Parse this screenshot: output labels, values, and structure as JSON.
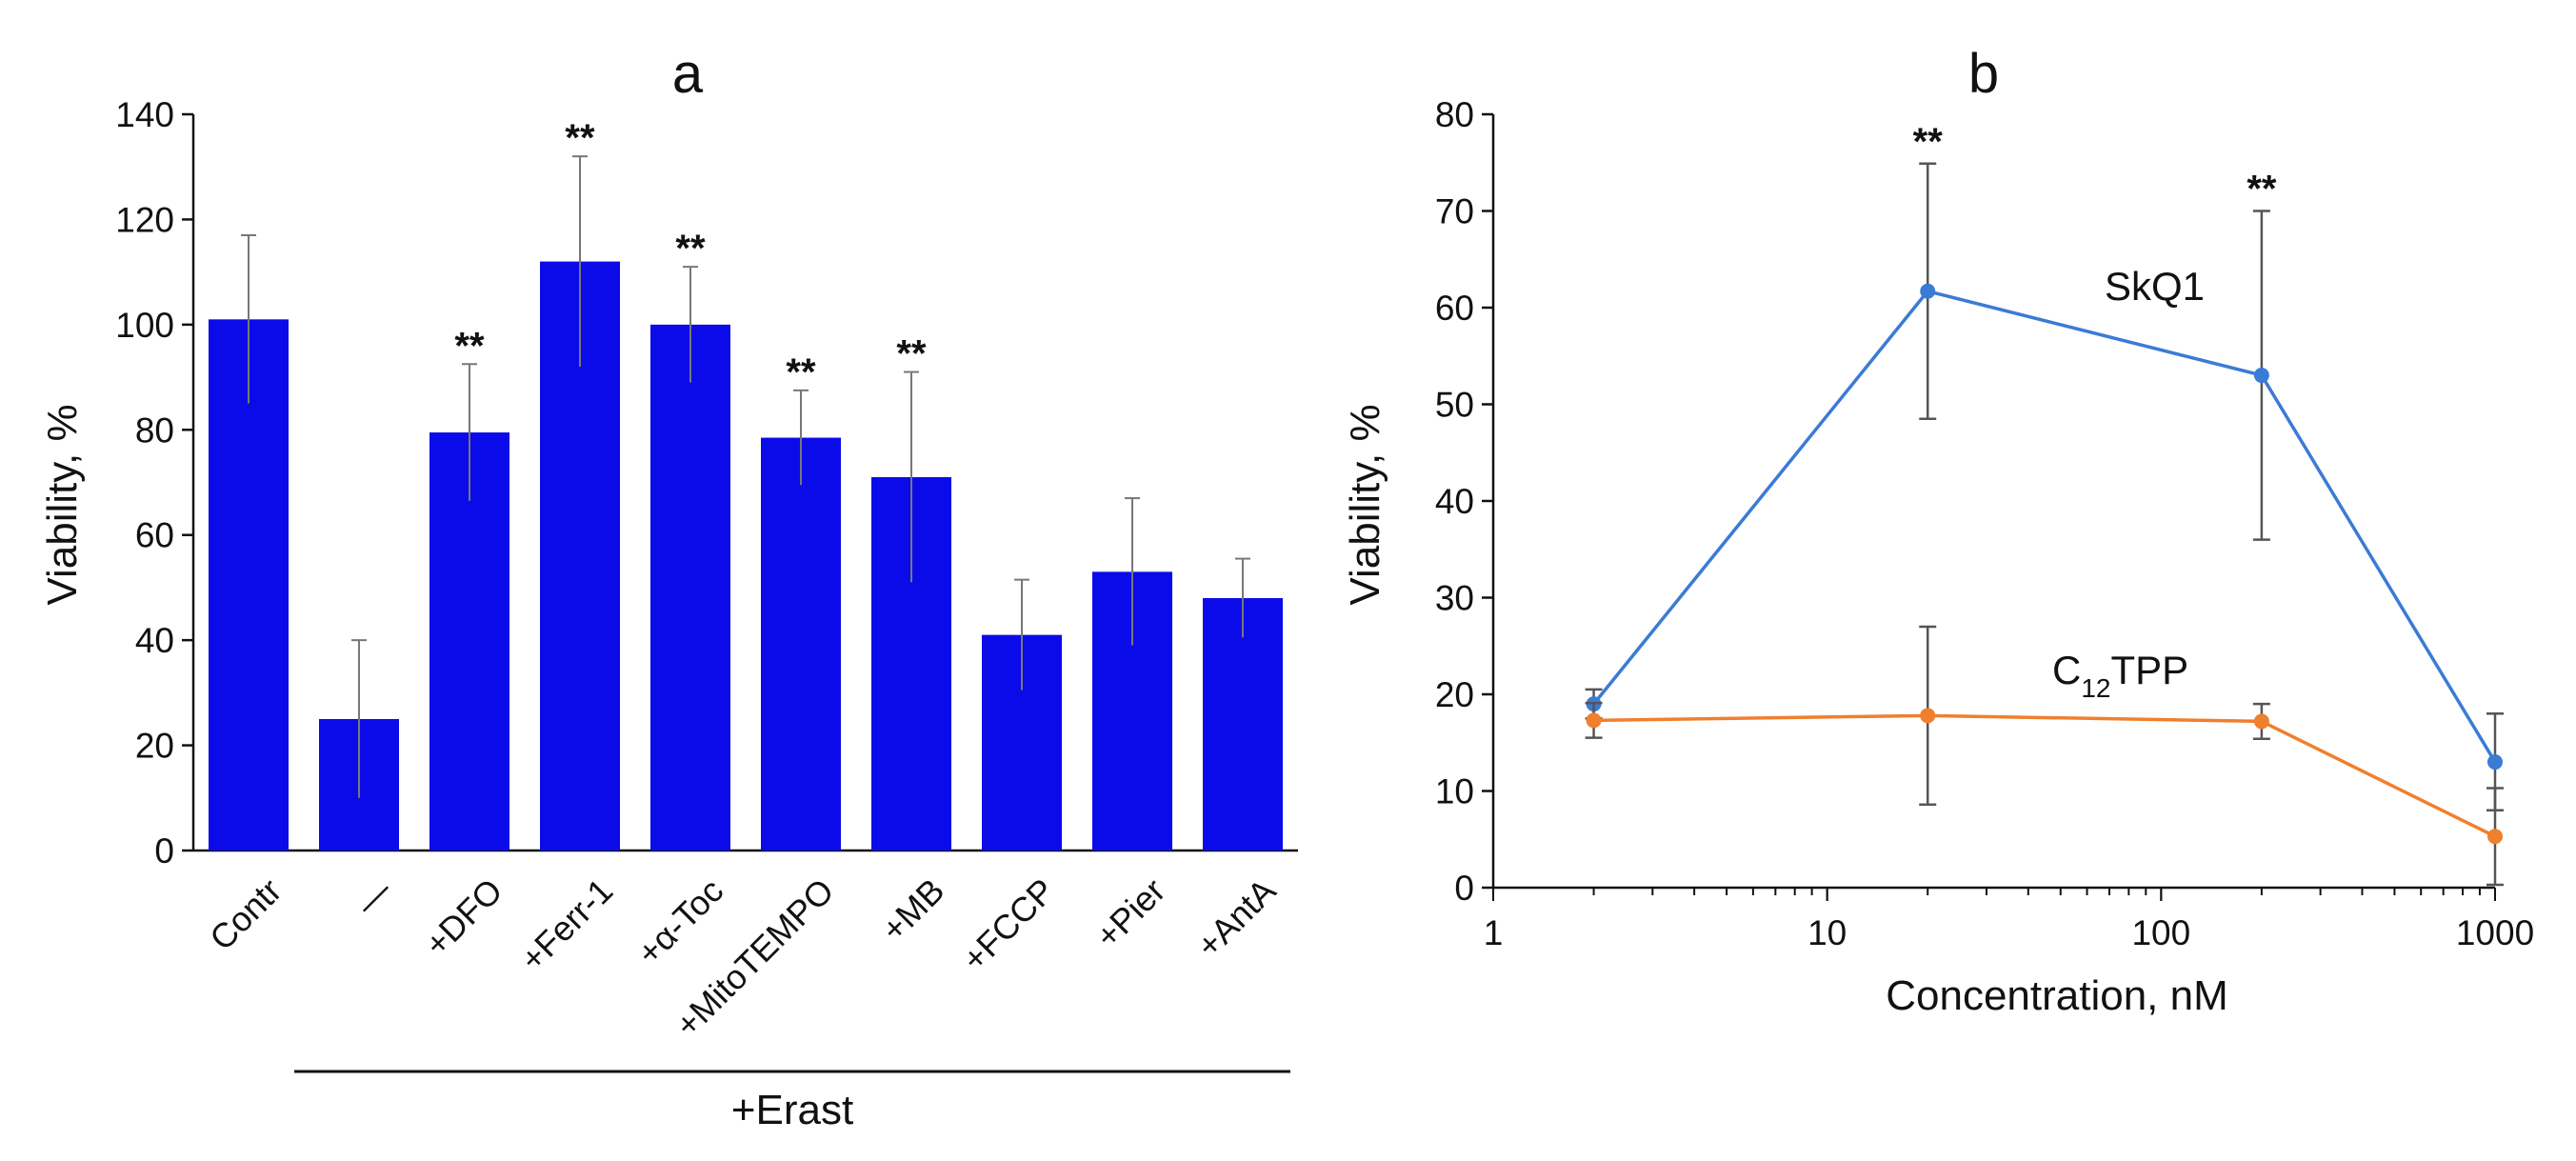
{
  "chart_data": [
    {
      "panel": "a",
      "type": "bar",
      "title": "a",
      "ylabel": "Viability, %",
      "xlabel": "",
      "ylim": [
        0,
        140
      ],
      "yticks": [
        0,
        20,
        40,
        60,
        80,
        100,
        120,
        140
      ],
      "categories": [
        "Contr",
        "—",
        "+DFO",
        "+Ferr-1",
        "+α-Toc",
        "+MitoTEMPO",
        "+MB",
        "+FCCP",
        "+Pier",
        "+AntA"
      ],
      "values": [
        101,
        25,
        79.5,
        112,
        100,
        78.5,
        71,
        41,
        53,
        48
      ],
      "errors": [
        16,
        15,
        13,
        20,
        11,
        9,
        20,
        10.5,
        14,
        7.5
      ],
      "significance": [
        "",
        "",
        "**",
        "**",
        "**",
        "**",
        "**",
        "",
        "",
        ""
      ],
      "bar_color": "#0b0bea",
      "group_bracket": {
        "label": "+Erast",
        "from_category": 1,
        "to_category": 9
      }
    },
    {
      "panel": "b",
      "type": "line",
      "title": "b",
      "xlabel": "Concentration, nM",
      "ylabel": "Viability, %",
      "xscale": "log",
      "xlim": [
        1,
        1000
      ],
      "xticks": [
        1,
        10,
        100,
        1000
      ],
      "xtick_labels": [
        "1",
        "10",
        "100",
        "1000"
      ],
      "ylim": [
        0,
        80
      ],
      "yticks": [
        0,
        10,
        20,
        30,
        40,
        50,
        60,
        70,
        80
      ],
      "series": [
        {
          "name": "SkQ1",
          "label_text": "SkQ1",
          "color": "#3a7bd5",
          "x": [
            2,
            20,
            200,
            1000
          ],
          "values": [
            19,
            61.7,
            53,
            13
          ],
          "errors": [
            1.5,
            13.2,
            17,
            5
          ],
          "significance": [
            "",
            "**",
            "**",
            ""
          ]
        },
        {
          "name": "C12TPP",
          "label_main": "C",
          "label_sub": "12",
          "label_rest": "TPP",
          "color": "#f07f2e",
          "x": [
            2,
            20,
            200,
            1000
          ],
          "values": [
            17.3,
            17.8,
            17.2,
            5.3
          ],
          "errors": [
            1.8,
            9.2,
            1.8,
            5
          ],
          "significance": [
            "",
            "",
            "",
            ""
          ]
        }
      ]
    }
  ]
}
